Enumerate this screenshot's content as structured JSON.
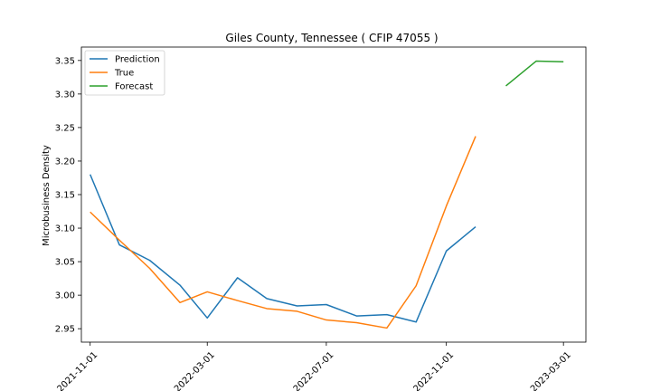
{
  "chart_data": {
    "type": "line",
    "title": "Giles County, Tennessee ( CFIP 47055 )",
    "xlabel": "",
    "ylabel": "Microbusiness Density",
    "xlim": [
      "2021-10-23",
      "2023-03-24"
    ],
    "ylim": [
      2.93,
      3.37
    ],
    "x_ticks": [
      "2021-11-01",
      "2022-03-01",
      "2022-07-01",
      "2022-11-01",
      "2023-03-01"
    ],
    "y_ticks": [
      "2.95",
      "3.00",
      "3.05",
      "3.10",
      "3.15",
      "3.20",
      "3.25",
      "3.30",
      "3.35"
    ],
    "legend_position": "top-left",
    "grid": false,
    "series": [
      {
        "name": "Prediction",
        "color": "#1f77b4",
        "x": [
          "2021-11-01",
          "2021-12-01",
          "2022-01-01",
          "2022-02-01",
          "2022-03-01",
          "2022-04-01",
          "2022-05-01",
          "2022-06-01",
          "2022-07-01",
          "2022-08-01",
          "2022-09-01",
          "2022-10-01",
          "2022-11-01",
          "2022-12-01"
        ],
        "values": [
          3.18,
          3.075,
          3.052,
          3.015,
          2.966,
          3.026,
          2.995,
          2.984,
          2.986,
          2.969,
          2.971,
          2.96,
          3.066,
          3.102
        ]
      },
      {
        "name": "True",
        "color": "#ff7f0e",
        "x": [
          "2021-11-01",
          "2021-12-01",
          "2022-01-01",
          "2022-02-01",
          "2022-03-01",
          "2022-04-01",
          "2022-05-01",
          "2022-06-01",
          "2022-07-01",
          "2022-08-01",
          "2022-09-01",
          "2022-10-01",
          "2022-11-01",
          "2022-12-01"
        ],
        "values": [
          3.124,
          3.082,
          3.04,
          2.989,
          3.005,
          2.992,
          2.98,
          2.976,
          2.963,
          2.959,
          2.951,
          3.014,
          3.133,
          3.237
        ]
      },
      {
        "name": "Forecast",
        "color": "#2ca02c",
        "x": [
          "2023-01-01",
          "2023-02-01",
          "2023-03-01"
        ],
        "values": [
          3.312,
          3.349,
          3.348
        ]
      }
    ]
  }
}
